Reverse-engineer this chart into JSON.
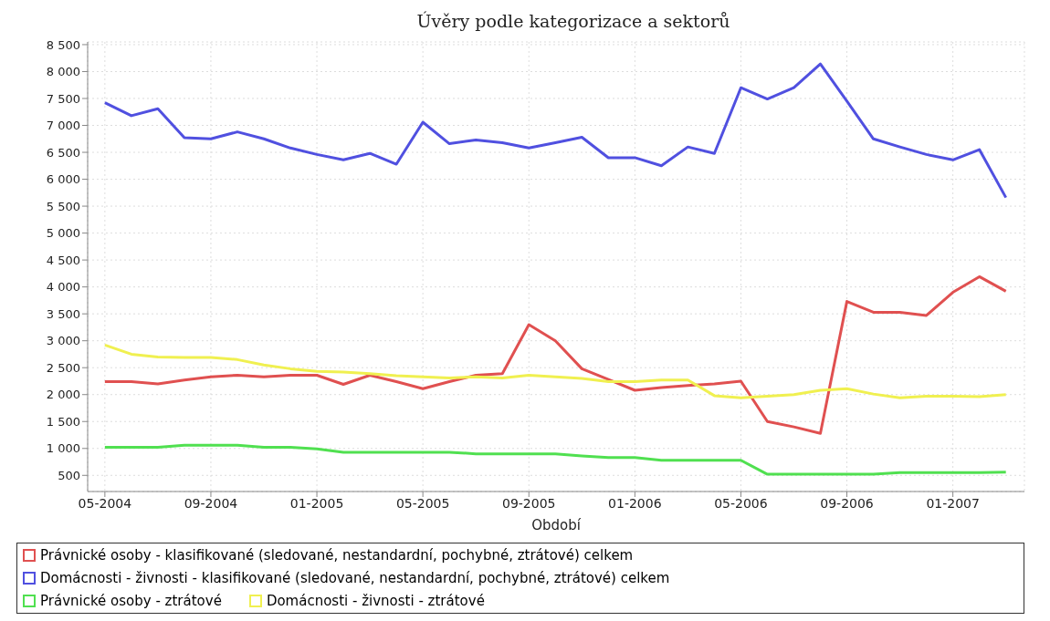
{
  "chart_data": {
    "type": "line",
    "title": "Úvěry podle kategorizace a sektorů",
    "xlabel": "Období",
    "categories": [
      "05-2004",
      null,
      null,
      null,
      "09-2004",
      null,
      null,
      null,
      "01-2005",
      null,
      null,
      null,
      "05-2005",
      null,
      null,
      null,
      "09-2005",
      null,
      null,
      null,
      "01-2006",
      null,
      null,
      null,
      "05-2006",
      null,
      null,
      null,
      "09-2006",
      null,
      null,
      null,
      "01-2007",
      null,
      null
    ],
    "series": [
      {
        "name": "Právnické osoby - klasifikované (sledované, nestandardní, pochybné, ztrátové) celkem",
        "color": "#e05050",
        "values": [
          2240,
          2240,
          2200,
          2270,
          2330,
          2360,
          2330,
          2360,
          2360,
          2190,
          2360,
          2240,
          2110,
          2240,
          2360,
          2390,
          3300,
          3000,
          2480,
          2280,
          2080,
          2130,
          2170,
          2200,
          2250,
          1500,
          1400,
          1280,
          3730,
          3530,
          3530,
          3470,
          3900,
          4190,
          3920
        ]
      },
      {
        "name": "Domácnosti - živnosti - klasifikované (sledované, nestandardní, pochybné, ztrátové) celkem",
        "color": "#5050e0",
        "values": [
          7420,
          7180,
          7310,
          6770,
          6750,
          6880,
          6750,
          6580,
          6460,
          6360,
          6480,
          6280,
          7060,
          6660,
          6730,
          6680,
          6580,
          6680,
          6780,
          6400,
          6400,
          6250,
          6600,
          6480,
          7700,
          7490,
          7700,
          8140,
          7450,
          6750,
          6600,
          6460,
          6360,
          6550,
          5660
        ]
      },
      {
        "name": "Právnické osoby - ztrátové",
        "color": "#50e050",
        "values": [
          1020,
          1020,
          1020,
          1060,
          1060,
          1060,
          1020,
          1020,
          990,
          930,
          930,
          930,
          930,
          930,
          900,
          900,
          900,
          900,
          860,
          830,
          830,
          780,
          780,
          780,
          780,
          520,
          520,
          520,
          520,
          520,
          550,
          550,
          550,
          550,
          560
        ]
      },
      {
        "name": "Domácnosti - živnosti - ztrátové",
        "color": "#f0f050",
        "values": [
          2920,
          2750,
          2700,
          2690,
          2690,
          2650,
          2550,
          2480,
          2430,
          2420,
          2390,
          2350,
          2330,
          2310,
          2330,
          2310,
          2360,
          2330,
          2300,
          2240,
          2240,
          2270,
          2270,
          1980,
          1940,
          1970,
          2000,
          2080,
          2110,
          2010,
          1940,
          1970,
          1970,
          1960,
          2000
        ]
      }
    ],
    "ylim": [
      200,
      8550
    ],
    "yticks": [
      {
        "value": 500,
        "label": "500"
      },
      {
        "value": 1000,
        "label": "1 000"
      },
      {
        "value": 1500,
        "label": "1 500"
      },
      {
        "value": 2000,
        "label": "2 000"
      },
      {
        "value": 2500,
        "label": "2 500"
      },
      {
        "value": 3000,
        "label": "3 000"
      },
      {
        "value": 3500,
        "label": "3 500"
      },
      {
        "value": 4000,
        "label": "4 000"
      },
      {
        "value": 4500,
        "label": "4 500"
      },
      {
        "value": 5000,
        "label": "5 000"
      },
      {
        "value": 5500,
        "label": "5 500"
      },
      {
        "value": 6000,
        "label": "6 000"
      },
      {
        "value": 6500,
        "label": "6 500"
      },
      {
        "value": 7000,
        "label": "7 000"
      },
      {
        "value": 7500,
        "label": "7 500"
      },
      {
        "value": 8000,
        "label": "8 000"
      },
      {
        "value": 8500,
        "label": "8 500"
      }
    ],
    "grid": true,
    "legend": "bottom",
    "marker": "none",
    "line_style": "solid"
  }
}
